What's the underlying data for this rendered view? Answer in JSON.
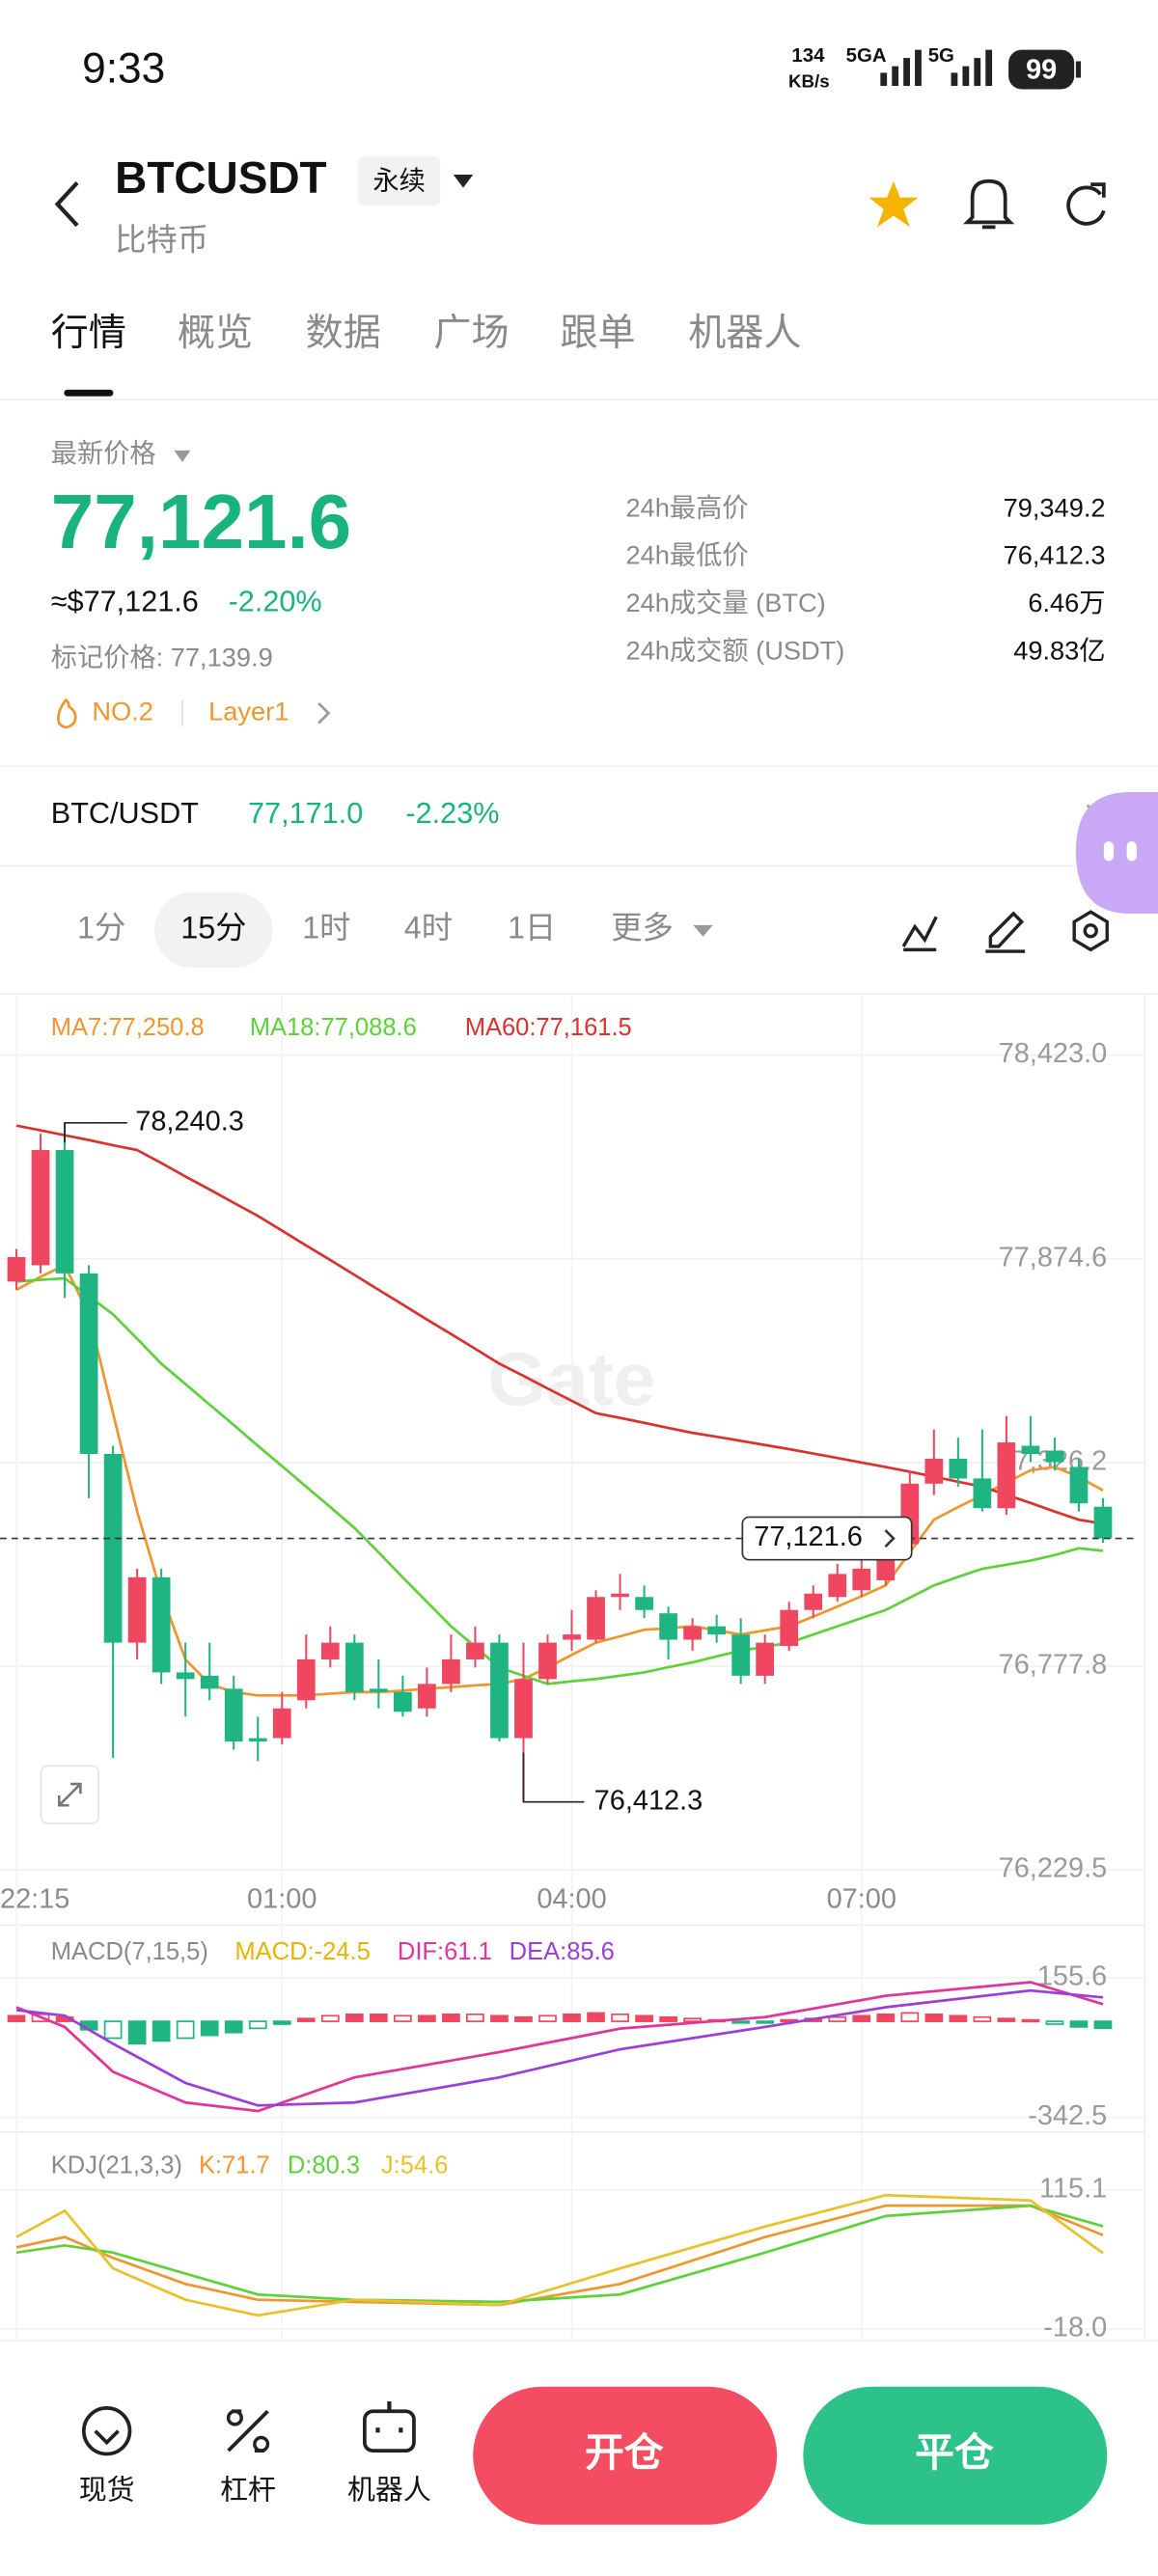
{
  "status_bar": {
    "time": "9:33",
    "speed": "134",
    "speed_unit": "KB/s",
    "network_1": "5GA",
    "network_2": "5G",
    "battery": "99"
  },
  "header": {
    "symbol": "BTCUSDT",
    "contract": "永续",
    "name": "比特币"
  },
  "tabs": [
    "行情",
    "概览",
    "数据",
    "广场",
    "跟单",
    "机器人"
  ],
  "ticker": {
    "label": "最新价格",
    "price": "77,121.6",
    "usd_price": "≈$77,121.6",
    "change": "-2.20%",
    "mark_price": "标记价格: 77,139.9",
    "rank": "NO.2",
    "tag": "Layer1"
  },
  "stats": [
    {
      "label": "24h最高价",
      "value": "79,349.2"
    },
    {
      "label": "24h最低价",
      "value": "76,412.3"
    },
    {
      "label": "24h成交量 (BTC)",
      "value": "6.46万"
    },
    {
      "label": "24h成交额 (USDT)",
      "value": "49.83亿"
    }
  ],
  "spot_pair": {
    "name": "BTC/USDT",
    "price": "77,171.0",
    "change": "-2.23%"
  },
  "intervals": [
    "1分",
    "15分",
    "1时",
    "4时",
    "1日",
    "更多"
  ],
  "chart_data": [
    {
      "type": "candlestick",
      "watermark": "Gate",
      "open": [
        77813,
        77857,
        78167,
        77835,
        77349,
        76841,
        77017,
        76761,
        76752,
        76717,
        76584,
        76584,
        76686,
        76796,
        76841,
        76717,
        76708,
        76664,
        76730,
        76796,
        76841,
        76584,
        76743,
        76849,
        76849,
        76964,
        76964,
        76920,
        76849,
        76885,
        76863,
        76752,
        76832,
        76929,
        76964,
        76982,
        77009,
        77106,
        77269,
        77336,
        77283,
        77203,
        77371,
        77358,
        77314,
        77207
      ],
      "high": [
        77901,
        78211,
        78240.3,
        77857,
        77371,
        77040,
        77040,
        76841,
        76841,
        76752,
        76642,
        76708,
        76863,
        76885,
        76863,
        76796,
        76752,
        76774,
        76863,
        76885,
        76863,
        76841,
        76863,
        76929,
        76982,
        77026,
        76995,
        76938,
        76907,
        76916,
        76907,
        76863,
        76951,
        76995,
        77053,
        77062,
        77150,
        77305,
        77415,
        77393,
        77415,
        77451,
        77451,
        77393,
        77336,
        77230
      ],
      "low": [
        77791,
        77835,
        77769,
        77230,
        76531,
        76796,
        76730,
        76642,
        76686,
        76553,
        76522,
        76567,
        76664,
        76774,
        76686,
        76664,
        76642,
        76642,
        76708,
        76774,
        76575,
        76412.3,
        76730,
        76819,
        76841,
        76929,
        76907,
        76796,
        76819,
        76841,
        76730,
        76730,
        76819,
        76907,
        76951,
        76964,
        76995,
        77084,
        77238,
        77261,
        77194,
        77185,
        77327,
        77305,
        77194,
        77110
      ],
      "close": [
        77879,
        78167,
        77835,
        77349,
        76841,
        77017,
        76761,
        76743,
        76717,
        76575,
        76575,
        76664,
        76796,
        76841,
        76708,
        76708,
        76655,
        76730,
        76796,
        76841,
        76584,
        76743,
        76841,
        76863,
        76964,
        76973,
        76929,
        76849,
        76885,
        76863,
        76752,
        76841,
        76929,
        76973,
        77026,
        77040,
        77106,
        77269,
        77336,
        77283,
        77203,
        77380,
        77349,
        77327,
        77216,
        77121.6
      ],
      "up_color": "#f0465f",
      "down_color": "#1fb583",
      "series": [
        {
          "name": "MA7:77,250.8",
          "color": "#f0962e",
          "values": [
            77791,
            77826,
            77857,
            77725,
            77459,
            77194,
            76973,
            76796,
            76730,
            76708,
            76699,
            76699,
            76699,
            76704,
            76708,
            76708,
            76712,
            76717,
            76721,
            76726,
            76730,
            76743,
            76774,
            76808,
            76841,
            76858,
            76876,
            76880,
            76885,
            76874,
            76863,
            76874,
            76885,
            76911,
            76938,
            76966,
            76995,
            77084,
            77172,
            77206,
            77238,
            77272,
            77305,
            77314,
            77287,
            77250.8
          ]
        },
        {
          "name": "MA18:77,088.6",
          "color": "#5fd13a",
          "values": [
            77813,
            77818,
            77822,
            77774,
            77725,
            77659,
            77592,
            77537,
            77482,
            77427,
            77371,
            77316,
            77261,
            77206,
            77150,
            77084,
            77017,
            76951,
            76885,
            76830,
            76774,
            76752,
            76730,
            76737,
            76743,
            76752,
            76761,
            76775,
            76788,
            76804,
            76819,
            76830,
            76841,
            76863,
            76885,
            76907,
            76929,
            76962,
            76995,
            77018,
            77040,
            77051,
            77062,
            77077,
            77095,
            77088.6
          ]
        },
        {
          "name": "MA60:77,161.5",
          "color": "#d8332f",
          "values": [
            78233,
            78220,
            78207,
            78194,
            78180,
            78167,
            78132,
            78096,
            78061,
            78025,
            77990,
            77950,
            77910,
            77871,
            77831,
            77791,
            77751,
            77711,
            77672,
            77632,
            77592,
            77559,
            77525,
            77492,
            77459,
            77446,
            77433,
            77419,
            77406,
            77395,
            77384,
            77373,
            77362,
            77350,
            77338,
            77326,
            77314,
            77301,
            77288,
            77274,
            77261,
            77239,
            77217,
            77194,
            77172,
            77161.5
          ]
        }
      ],
      "ylim": [
        76222,
        78587
      ],
      "yticks": [
        {
          "value": 78423.0,
          "label": "78,423.0"
        },
        {
          "value": 77874.6,
          "label": "77,874.6"
        },
        {
          "value": 77326.2,
          "label": "77,326.2"
        },
        {
          "value": 76777.8,
          "label": "76,777.8"
        },
        {
          "value": 76229.5,
          "label": "76,229.5"
        }
      ],
      "xticks": [
        {
          "value": 0,
          "label": "22:15"
        },
        {
          "value": 11,
          "label": "01:00"
        },
        {
          "value": 23,
          "label": "04:00"
        },
        {
          "value": 35,
          "label": "07:00"
        }
      ],
      "max_label": "78,240.3",
      "min_label": "76,412.3",
      "last_label": "77,121.6"
    },
    {
      "type": "macd",
      "title": "MACD(7,15,5)",
      "histogram": {
        "name": "MACD:-24.5",
        "color": "#e8b400",
        "values": [
          20,
          25,
          15,
          -30,
          -60,
          -80,
          -70,
          -60,
          -50,
          -40,
          -25,
          -10,
          10,
          20,
          25,
          25,
          20,
          20,
          25,
          25,
          20,
          15,
          20,
          25,
          30,
          25,
          20,
          15,
          10,
          5,
          -5,
          -5,
          5,
          10,
          15,
          20,
          25,
          30,
          25,
          20,
          15,
          10,
          5,
          -10,
          -20,
          -24.5
        ]
      },
      "x": [
        0,
        2,
        4,
        7,
        10,
        14,
        20,
        25,
        31,
        36,
        42,
        45
      ],
      "series": [
        {
          "name": "DIF:61.1",
          "color": "#e0359a",
          "values": [
            50,
            -20,
            -180,
            -290,
            -320,
            -200,
            -110,
            -26,
            15,
            91,
            140,
            61.1
          ]
        },
        {
          "name": "DEA:85.6",
          "color": "#9b3fd6",
          "values": [
            40,
            20,
            -80,
            -220,
            -300,
            -290,
            -200,
            -100,
            -20,
            50,
            110,
            85.6
          ]
        }
      ],
      "ylim": [
        -383.5,
        308
      ],
      "yticks": [
        155.6,
        -342.5
      ]
    },
    {
      "type": "kdj",
      "title": "KDJ(21,3,3)",
      "x": [
        0,
        2,
        4,
        7,
        10,
        14,
        20,
        25,
        31,
        36,
        42,
        45
      ],
      "series": [
        {
          "name": "K:71.7",
          "color": "#f0962e",
          "values": [
            60,
            70,
            50,
            25,
            10,
            8,
            5,
            25,
            70,
            100,
            100,
            71.7
          ]
        },
        {
          "name": "D:80.3",
          "color": "#5fd13a",
          "values": [
            55,
            62,
            55,
            35,
            15,
            10,
            8,
            15,
            55,
            90,
            100,
            80.3
          ]
        },
        {
          "name": "J:54.6",
          "color": "#e8c22a",
          "values": [
            70,
            95,
            40,
            10,
            -5,
            10,
            5,
            40,
            80,
            110,
            105,
            54.6
          ]
        }
      ],
      "ylim": [
        -24.4,
        126.3
      ],
      "yticks": [
        115.1,
        {
          "value": -18,
          "label": "-18.0"
        }
      ]
    }
  ],
  "bottom_bar": {
    "items": [
      "现货",
      "杠杆",
      "机器人"
    ],
    "open": "开仓",
    "close": "平仓"
  }
}
